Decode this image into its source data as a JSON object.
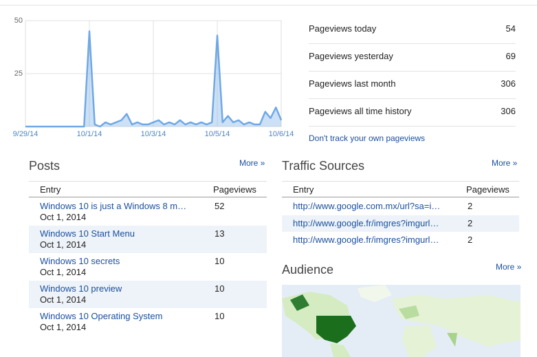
{
  "chart_data": {
    "type": "area",
    "categories": [
      "9/29/14",
      null,
      null,
      null,
      null,
      null,
      null,
      null,
      null,
      null,
      null,
      null,
      "10/1/14",
      null,
      null,
      null,
      null,
      null,
      null,
      null,
      null,
      null,
      null,
      null,
      "10/3/14",
      null,
      null,
      null,
      null,
      null,
      null,
      null,
      null,
      null,
      null,
      null,
      "10/5/14",
      null,
      null,
      null,
      null,
      null,
      null,
      null,
      null,
      null,
      null,
      null,
      "10/6/14"
    ],
    "values": [
      0,
      0,
      0,
      0,
      0,
      0,
      0,
      0,
      0,
      0,
      0,
      0,
      45,
      1,
      0,
      2,
      1,
      2,
      3,
      6,
      1,
      2,
      1,
      1,
      2,
      3,
      1,
      2,
      1,
      3,
      1,
      2,
      1,
      2,
      1,
      2,
      43,
      2,
      5,
      2,
      3,
      1,
      2,
      1,
      1,
      7,
      4,
      9,
      3
    ],
    "color": "#6fa8e6",
    "ylim": [
      0,
      50
    ],
    "yticks": [
      25,
      50
    ],
    "grid": true
  },
  "stats": [
    {
      "label": "Pageviews today",
      "value": 54
    },
    {
      "label": "Pageviews yesterday",
      "value": 69
    },
    {
      "label": "Pageviews last month",
      "value": 306
    },
    {
      "label": "Pageviews all time history",
      "value": 306
    }
  ],
  "stats_link": "Don't track your own pageviews",
  "posts": {
    "title": "Posts",
    "more": "More »",
    "headers": [
      "Entry",
      "Pageviews"
    ],
    "rows": [
      {
        "entry": "Windows 10 is just a Windows 8 m…",
        "date": "Oct 1, 2014",
        "pageviews": 52
      },
      {
        "entry": "Windows 10 Start Menu",
        "date": "Oct 1, 2014",
        "pageviews": 13
      },
      {
        "entry": "Windows 10 secrets",
        "date": "Oct 1, 2014",
        "pageviews": 10
      },
      {
        "entry": "Windows 10 preview",
        "date": "Oct 1, 2014",
        "pageviews": 10
      },
      {
        "entry": "Windows 10 Operating System",
        "date": "Oct 1, 2014",
        "pageviews": 10
      }
    ]
  },
  "traffic": {
    "title": "Traffic Sources",
    "more": "More »",
    "headers": [
      "Entry",
      "Pageviews"
    ],
    "rows": [
      {
        "entry": "http://www.google.com.mx/url?sa=i…",
        "pageviews": 2
      },
      {
        "entry": "http://www.google.fr/imgres?imgurl…",
        "pageviews": 2
      },
      {
        "entry": "http://www.google.fr/imgres?imgurl…",
        "pageviews": 2
      }
    ]
  },
  "audience": {
    "title": "Audience",
    "more": "More »"
  }
}
